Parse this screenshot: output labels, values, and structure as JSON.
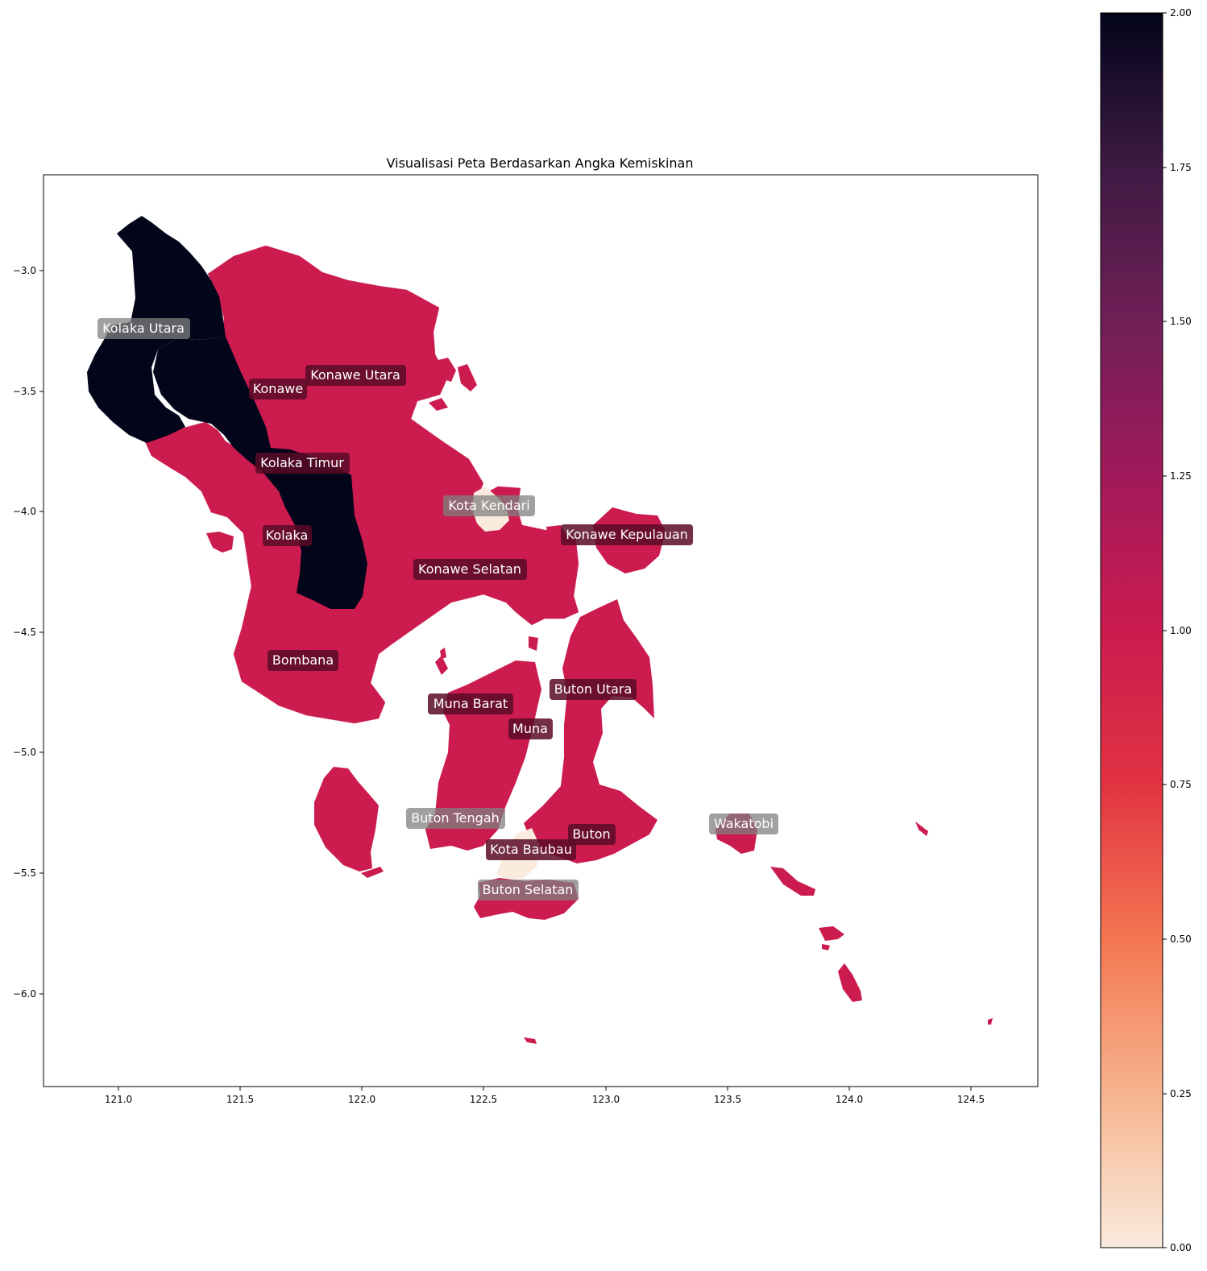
{
  "title": "Visualisasi Peta Berdasarkan Angka Kemiskinan",
  "x_ticks": [
    "121.0",
    "121.5",
    "122.0",
    "122.5",
    "123.0",
    "123.5",
    "124.0",
    "124.5"
  ],
  "y_ticks": [
    "−3.0",
    "−3.5",
    "−4.0",
    "−4.5",
    "−5.0",
    "−5.5",
    "−6.0"
  ],
  "colorbar": {
    "ticks": [
      "0.00",
      "0.25",
      "0.50",
      "0.75",
      "1.00",
      "1.25",
      "1.50",
      "1.75",
      "2.00"
    ],
    "range": [
      0,
      2
    ]
  },
  "colors": {
    "low": "#faebdd",
    "mid": "#cb1b4f",
    "high": "#03051a"
  },
  "regions": [
    {
      "name": "Kolaka Utara",
      "value": 2
    },
    {
      "name": "Konawe Utara",
      "value": 1
    },
    {
      "name": "Konawe",
      "value": 1
    },
    {
      "name": "Kolaka Timur",
      "value": 2
    },
    {
      "name": "Kota Kendari",
      "value": 0
    },
    {
      "name": "Kolaka",
      "value": 1
    },
    {
      "name": "Konawe Kepulauan",
      "value": 1
    },
    {
      "name": "Konawe Selatan",
      "value": 1
    },
    {
      "name": "Bombana",
      "value": 1
    },
    {
      "name": "Buton Utara",
      "value": 1
    },
    {
      "name": "Muna Barat",
      "value": 1
    },
    {
      "name": "Muna",
      "value": 1
    },
    {
      "name": "Wakatobi",
      "value": 1
    },
    {
      "name": "Buton Tengah",
      "value": 1
    },
    {
      "name": "Buton",
      "value": 1
    },
    {
      "name": "Kota Baubau",
      "value": 0
    },
    {
      "name": "Buton Selatan",
      "value": 1
    }
  ]
}
